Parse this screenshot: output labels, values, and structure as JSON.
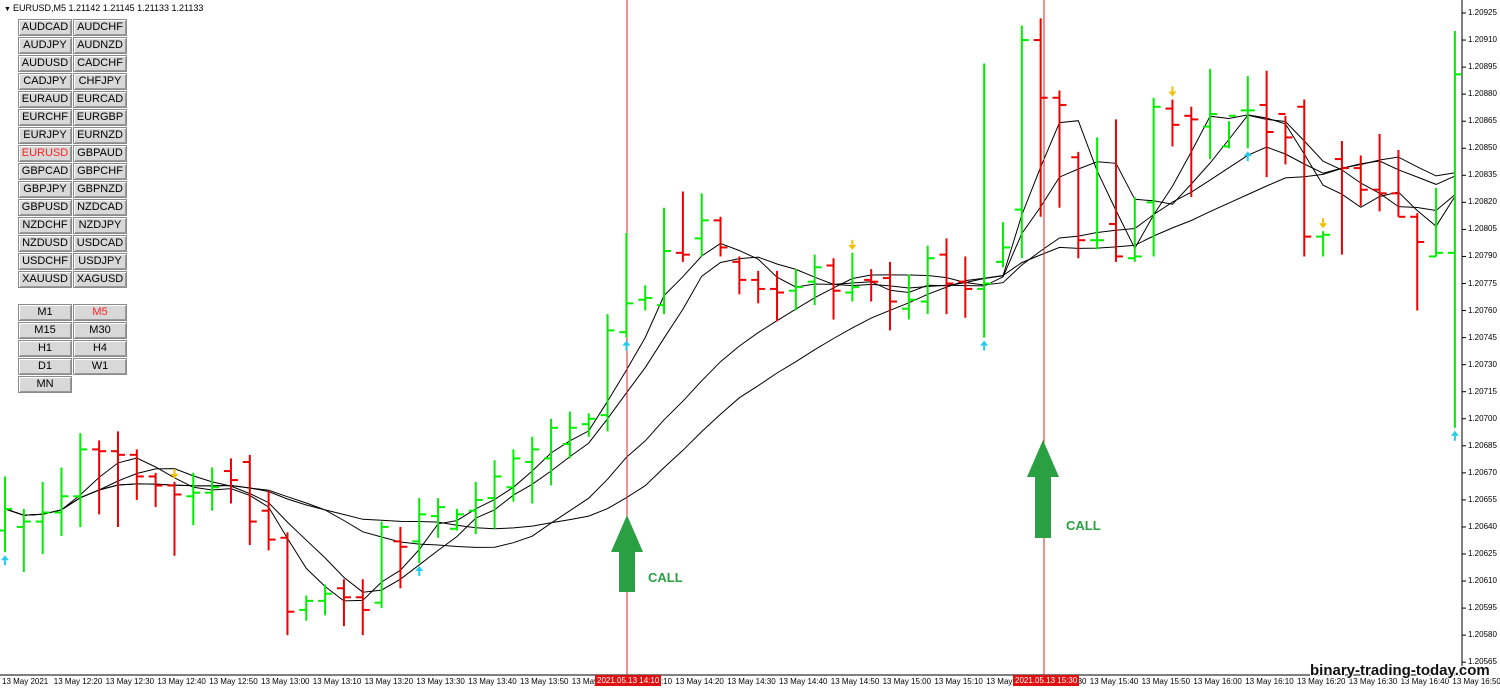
{
  "window": {
    "title": "EURUSD,M5  1.21142 1.21145 1.21133 1.21133"
  },
  "symbol_buttons": [
    "AUDCAD",
    "AUDCHF",
    "AUDJPY",
    "AUDNZD",
    "AUDUSD",
    "CADCHF",
    "CADJPY",
    "CHFJPY",
    "EURAUD",
    "EURCAD",
    "EURCHF",
    "EURGBP",
    "EURJPY",
    "EURNZD",
    "EURUSD",
    "GBPAUD",
    "GBPCAD",
    "GBPCHF",
    "GBPJPY",
    "GBPNZD",
    "GBPUSD",
    "NZDCAD",
    "NZDCHF",
    "NZDJPY",
    "NZDUSD",
    "USDCAD",
    "USDCHF",
    "USDJPY",
    "XAUUSD",
    "XAGUSD"
  ],
  "active_symbol": "EURUSD",
  "timeframe_buttons": [
    "M1",
    "M5",
    "M15",
    "M30",
    "H1",
    "H4",
    "D1",
    "W1",
    "MN"
  ],
  "active_timeframe": "M5",
  "price_axis": [
    "1.20925",
    "1.20910",
    "1.20895",
    "1.20880",
    "1.20865",
    "1.20850",
    "1.20835",
    "1.20820",
    "1.20805",
    "1.20790",
    "1.20775",
    "1.20760",
    "1.20745",
    "1.20730",
    "1.20715",
    "1.20700",
    "1.20685",
    "1.20670",
    "1.20655",
    "1.20640",
    "1.20625",
    "1.20610",
    "1.20595",
    "1.20580",
    "1.20565"
  ],
  "time_axis": [
    "13 May 2021",
    "13 May 12:20",
    "13 May 12:30",
    "13 May 12:40",
    "13 May 12:50",
    "13 May 13:00",
    "13 May 13:10",
    "13 May 13:20",
    "13 May 13:30",
    "13 May 13:40",
    "13 May 13:50",
    "13 May 14:00",
    "13 May 14:10",
    "13 May 14:20",
    "13 May 14:30",
    "13 May 14:40",
    "13 May 14:50",
    "13 May 15:00",
    "13 May 15:10",
    "13 May 15:20",
    "13 May 15:30",
    "13 May 15:40",
    "13 May 15:50",
    "13 May 16:00",
    "13 May 16:10",
    "13 May 16:20",
    "13 May 16:30",
    "13 May 16:40",
    "13 May 16:50"
  ],
  "time_highlights": [
    "2021.05.13 14:10",
    "2021.05.13 15:30"
  ],
  "signals": [
    {
      "label": "CALL",
      "time": "2021.05.13 14:10"
    },
    {
      "label": "CALL",
      "time": "2021.05.13 15:30"
    }
  ],
  "watermark": "binary-trading-today.com",
  "colors": {
    "bull": "#00ee00",
    "bear": "#ee0000",
    "ma": "#000000",
    "signal_arrow": "#2aa043",
    "up_marker": "#22ccee",
    "down_marker": "#f0c000",
    "vline": "#e02020"
  },
  "chart_data": {
    "type": "ohlc",
    "symbol": "EURUSD",
    "timeframe": "M5",
    "ylim": [
      1.2056,
      1.2093
    ],
    "bars": [
      {
        "o": 1.20638,
        "h": 1.20668,
        "l": 1.20626,
        "c": 1.2065
      },
      {
        "o": 1.2064,
        "h": 1.2065,
        "l": 1.20615,
        "c": 1.20643
      },
      {
        "o": 1.20643,
        "h": 1.20665,
        "l": 1.20625,
        "c": 1.20648
      },
      {
        "o": 1.20648,
        "h": 1.20673,
        "l": 1.20635,
        "c": 1.20657
      },
      {
        "o": 1.20657,
        "h": 1.20692,
        "l": 1.2064,
        "c": 1.20683
      },
      {
        "o": 1.20683,
        "h": 1.20688,
        "l": 1.20647,
        "c": 1.20682
      },
      {
        "o": 1.20682,
        "h": 1.20693,
        "l": 1.2064,
        "c": 1.2068
      },
      {
        "o": 1.2068,
        "h": 1.20683,
        "l": 1.20655,
        "c": 1.20668
      },
      {
        "o": 1.20668,
        "h": 1.2067,
        "l": 1.20651,
        "c": 1.20663
      },
      {
        "o": 1.20663,
        "h": 1.20665,
        "l": 1.20624,
        "c": 1.20658
      },
      {
        "o": 1.20657,
        "h": 1.2067,
        "l": 1.20641,
        "c": 1.20659
      },
      {
        "o": 1.20659,
        "h": 1.20673,
        "l": 1.20649,
        "c": 1.20662
      },
      {
        "o": 1.20671,
        "h": 1.20678,
        "l": 1.20653,
        "c": 1.20666
      },
      {
        "o": 1.20676,
        "h": 1.2068,
        "l": 1.2063,
        "c": 1.20643
      },
      {
        "o": 1.20649,
        "h": 1.2066,
        "l": 1.20627,
        "c": 1.20633
      },
      {
        "o": 1.20634,
        "h": 1.20637,
        "l": 1.2058,
        "c": 1.20593
      },
      {
        "o": 1.20594,
        "h": 1.20602,
        "l": 1.20588,
        "c": 1.20599
      },
      {
        "o": 1.20599,
        "h": 1.20608,
        "l": 1.20591,
        "c": 1.20603
      },
      {
        "o": 1.20606,
        "h": 1.20611,
        "l": 1.20585,
        "c": 1.20601
      },
      {
        "o": 1.20601,
        "h": 1.20611,
        "l": 1.2058,
        "c": 1.20594
      },
      {
        "o": 1.20598,
        "h": 1.20643,
        "l": 1.20595,
        "c": 1.2064
      },
      {
        "o": 1.20632,
        "h": 1.2064,
        "l": 1.20606,
        "c": 1.20629
      },
      {
        "o": 1.20632,
        "h": 1.20656,
        "l": 1.2062,
        "c": 1.20647
      },
      {
        "o": 1.20646,
        "h": 1.20656,
        "l": 1.20634,
        "c": 1.20651
      },
      {
        "o": 1.20639,
        "h": 1.2065,
        "l": 1.20638,
        "c": 1.20647
      },
      {
        "o": 1.20649,
        "h": 1.20665,
        "l": 1.20636,
        "c": 1.20655
      },
      {
        "o": 1.20656,
        "h": 1.20677,
        "l": 1.20639,
        "c": 1.20668
      },
      {
        "o": 1.20662,
        "h": 1.20683,
        "l": 1.20654,
        "c": 1.20678
      },
      {
        "o": 1.20676,
        "h": 1.2069,
        "l": 1.20653,
        "c": 1.20683
      },
      {
        "o": 1.20678,
        "h": 1.207,
        "l": 1.20663,
        "c": 1.20695
      },
      {
        "o": 1.20686,
        "h": 1.20704,
        "l": 1.20678,
        "c": 1.20695
      },
      {
        "o": 1.20697,
        "h": 1.20703,
        "l": 1.2069,
        "c": 1.207
      },
      {
        "o": 1.20702,
        "h": 1.20758,
        "l": 1.20693,
        "c": 1.20749
      },
      {
        "o": 1.20748,
        "h": 1.20803,
        "l": 1.20745,
        "c": 1.20764
      },
      {
        "o": 1.20766,
        "h": 1.20774,
        "l": 1.2076,
        "c": 1.20767
      },
      {
        "o": 1.20763,
        "h": 1.20817,
        "l": 1.20758,
        "c": 1.20793
      },
      {
        "o": 1.20792,
        "h": 1.20826,
        "l": 1.20787,
        "c": 1.20791
      },
      {
        "o": 1.208,
        "h": 1.20825,
        "l": 1.2079,
        "c": 1.2081
      },
      {
        "o": 1.2081,
        "h": 1.20812,
        "l": 1.2079,
        "c": 1.20795
      },
      {
        "o": 1.20787,
        "h": 1.2079,
        "l": 1.20769,
        "c": 1.20777
      },
      {
        "o": 1.20777,
        "h": 1.20782,
        "l": 1.20764,
        "c": 1.20772
      },
      {
        "o": 1.20772,
        "h": 1.20782,
        "l": 1.20754,
        "c": 1.2077
      },
      {
        "o": 1.20771,
        "h": 1.20783,
        "l": 1.2076,
        "c": 1.20773
      },
      {
        "o": 1.20776,
        "h": 1.20791,
        "l": 1.20763,
        "c": 1.20784
      },
      {
        "o": 1.20785,
        "h": 1.20789,
        "l": 1.20755,
        "c": 1.20771
      },
      {
        "o": 1.2077,
        "h": 1.20792,
        "l": 1.20765,
        "c": 1.20773
      },
      {
        "o": 1.20777,
        "h": 1.20783,
        "l": 1.20765,
        "c": 1.20776
      },
      {
        "o": 1.20778,
        "h": 1.20787,
        "l": 1.20749,
        "c": 1.20765
      },
      {
        "o": 1.20761,
        "h": 1.2078,
        "l": 1.20755,
        "c": 1.20766
      },
      {
        "o": 1.20765,
        "h": 1.20796,
        "l": 1.20758,
        "c": 1.20789
      },
      {
        "o": 1.20791,
        "h": 1.208,
        "l": 1.20758,
        "c": 1.20775
      },
      {
        "o": 1.20776,
        "h": 1.2079,
        "l": 1.20756,
        "c": 1.20772
      },
      {
        "o": 1.20772,
        "h": 1.20897,
        "l": 1.20745,
        "c": 1.20775
      },
      {
        "o": 1.20787,
        "h": 1.20809,
        "l": 1.20784,
        "c": 1.20795
      },
      {
        "o": 1.20816,
        "h": 1.20918,
        "l": 1.20789,
        "c": 1.2091
      },
      {
        "o": 1.2091,
        "h": 1.20922,
        "l": 1.20812,
        "c": 1.20878
      },
      {
        "o": 1.20878,
        "h": 1.20882,
        "l": 1.20817,
        "c": 1.20874
      },
      {
        "o": 1.20845,
        "h": 1.20848,
        "l": 1.20789,
        "c": 1.20799
      },
      {
        "o": 1.20799,
        "h": 1.20856,
        "l": 1.20794,
        "c": 1.20799
      },
      {
        "o": 1.20808,
        "h": 1.20866,
        "l": 1.20787,
        "c": 1.2079
      },
      {
        "o": 1.20789,
        "h": 1.20823,
        "l": 1.20787,
        "c": 1.2079
      },
      {
        "o": 1.2082,
        "h": 1.20878,
        "l": 1.2079,
        "c": 1.20873
      },
      {
        "o": 1.20872,
        "h": 1.20877,
        "l": 1.20851,
        "c": 1.20863
      },
      {
        "o": 1.20868,
        "h": 1.20873,
        "l": 1.20823,
        "c": 1.20866
      },
      {
        "o": 1.20862,
        "h": 1.20894,
        "l": 1.20844,
        "c": 1.20869
      },
      {
        "o": 1.20851,
        "h": 1.20865,
        "l": 1.2085,
        "c": 1.20868
      },
      {
        "o": 1.20871,
        "h": 1.2089,
        "l": 1.2085,
        "c": 1.20871
      },
      {
        "o": 1.20874,
        "h": 1.20893,
        "l": 1.20834,
        "c": 1.20859
      },
      {
        "o": 1.20869,
        "h": 1.20868,
        "l": 1.20841,
        "c": 1.20856
      },
      {
        "o": 1.20873,
        "h": 1.20877,
        "l": 1.2079,
        "c": 1.20801
      },
      {
        "o": 1.20801,
        "h": 1.20804,
        "l": 1.2079,
        "c": 1.20802
      },
      {
        "o": 1.20844,
        "h": 1.20854,
        "l": 1.20791,
        "c": 1.20839
      },
      {
        "o": 1.20839,
        "h": 1.20846,
        "l": 1.20818,
        "c": 1.20827
      },
      {
        "o": 1.20827,
        "h": 1.20858,
        "l": 1.20815,
        "c": 1.20825
      },
      {
        "o": 1.20825,
        "h": 1.20849,
        "l": 1.20812,
        "c": 1.20812
      },
      {
        "o": 1.20812,
        "h": 1.20814,
        "l": 1.2076,
        "c": 1.20798
      },
      {
        "o": 1.2079,
        "h": 1.20828,
        "l": 1.2079,
        "c": 1.20792
      },
      {
        "o": 1.20792,
        "h": 1.20915,
        "l": 1.20695,
        "c": 1.20891
      }
    ]
  }
}
